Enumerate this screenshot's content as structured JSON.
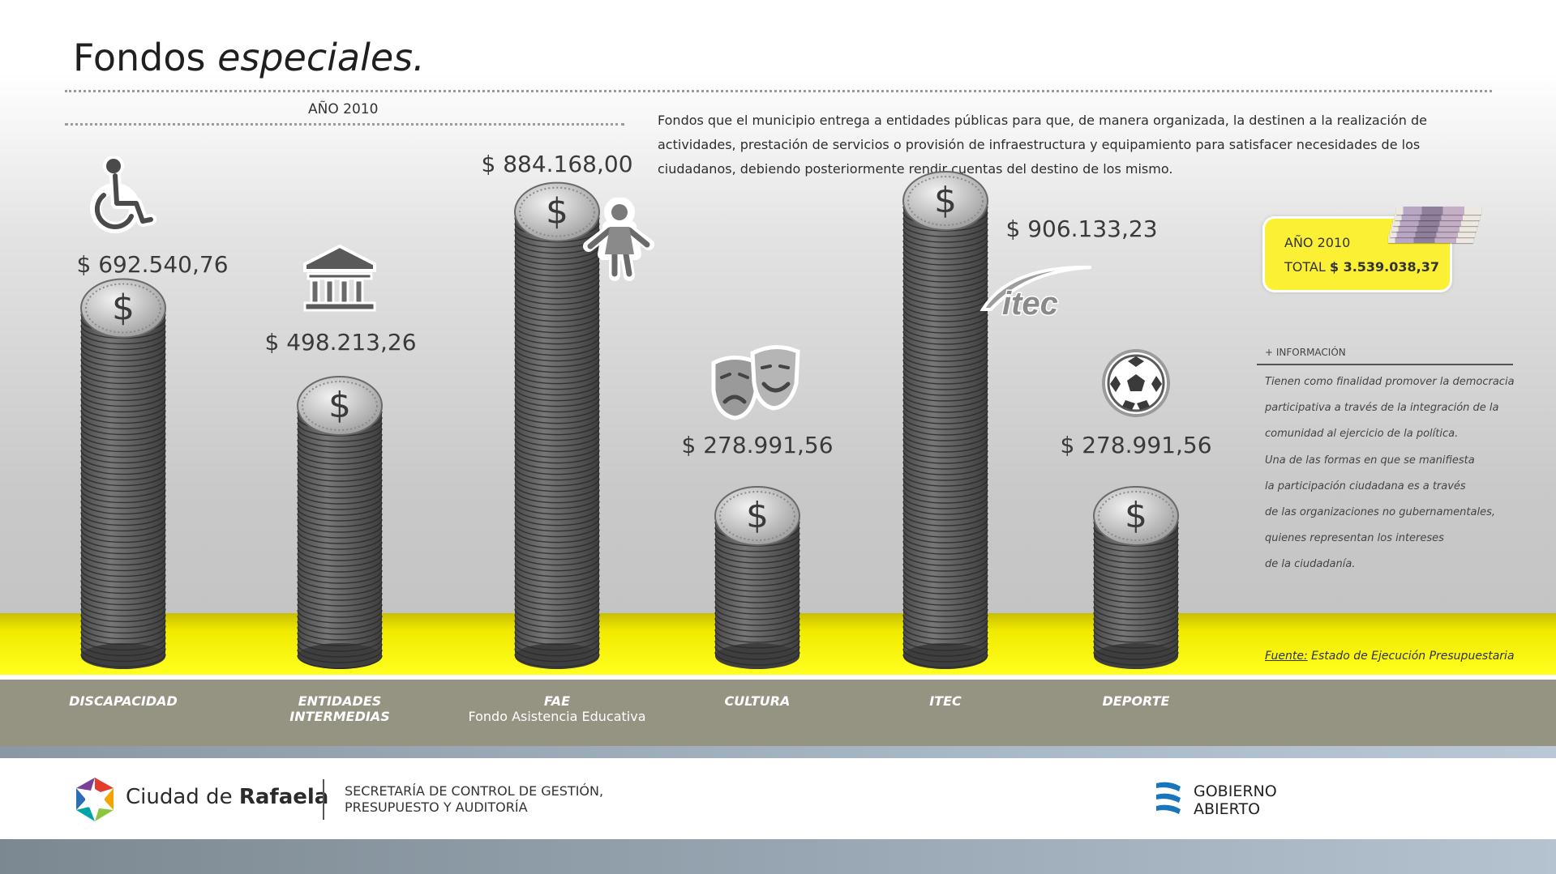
{
  "title": {
    "main": "Fondos",
    "emphasis": "especiales."
  },
  "year_label": "AÑO 2010",
  "description": "Fondos que el municipio entrega a entidades públicas para que, de manera organizada, la destinen a la realización de actividades, prestación de servicios o provisión de infraestructura y equipamiento para satisfacer necesidades de los ciudadanos, debiendo posteriormente rendir cuentas del destino de los mismo.",
  "total_box": {
    "year": "AÑO 2010",
    "label": "TOTAL",
    "value": "$ 3.539.038,37"
  },
  "info": {
    "heading": "+ INFORMACIÓN",
    "lines": [
      "Tienen como finalidad promover la democracia",
      "participativa a través de la integración de la",
      "comunidad al ejercicio de la política.",
      "Una de las formas en que se manifiesta",
      "la participación ciudadana es a través",
      "de las organizaciones no gubernamentales,",
      "quienes representan los intereses",
      "de la ciudadanía."
    ]
  },
  "source": {
    "label": "Fuente:",
    "text": "Estado de Ejecución Presupuestaria"
  },
  "chart_data": {
    "type": "bar",
    "categories": [
      "DISCAPACIDAD",
      "ENTIDADES INTERMEDIAS",
      "FAE",
      "CULTURA",
      "ITEC",
      "DEPORTE"
    ],
    "category_lines": [
      [
        "DISCAPACIDAD"
      ],
      [
        "ENTIDADES",
        "INTERMEDIAS"
      ],
      [
        "FAE"
      ],
      [
        "CULTURA"
      ],
      [
        "ITEC"
      ],
      [
        "DEPORTE"
      ]
    ],
    "category_subtitles": [
      "",
      "",
      "Fondo Asistencia Educativa",
      "",
      "",
      ""
    ],
    "values": [
      692540.76,
      498213.26,
      884168.0,
      278991.56,
      906133.23,
      278991.56
    ],
    "value_labels": [
      "$ 692.540,76",
      "$ 498.213,26",
      "$ 884.168,00",
      "$ 278.991,56",
      "$ 906.133,23",
      "$ 278.991,56"
    ],
    "icons": [
      "wheelchair-icon",
      "institution-building-icon",
      "child-running-icon",
      "theater-masks-icon",
      "itec-logo-icon",
      "soccer-ball-icon"
    ],
    "currency_symbol": "$",
    "ylim": [
      0,
      906133.23
    ],
    "colors": {
      "coin": "#5a5a5a",
      "coin_top": "#cfcfcf",
      "band": "#f6ef00"
    }
  },
  "footer": {
    "city_prefix": "Ciudad de",
    "city_name": "Rafaela",
    "secretaria": "SECRETARÍA DE CONTROL DE GESTIÓN, PRESUPUESTO Y AUDITORÍA",
    "gobierno": "GOBIERNO ABIERTO"
  }
}
